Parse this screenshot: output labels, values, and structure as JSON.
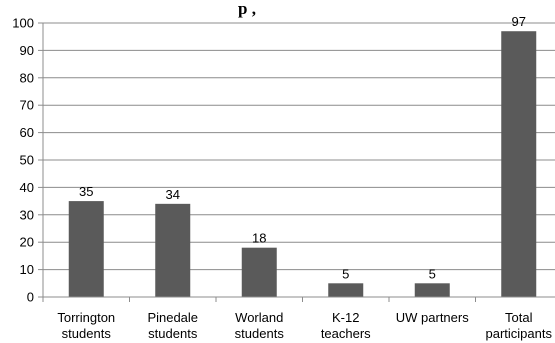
{
  "chart_data": {
    "type": "bar",
    "title_fragment": "p   ,",
    "categories": [
      [
        "Torrington",
        "students"
      ],
      [
        "Pinedale",
        "students"
      ],
      [
        "Worland",
        "students"
      ],
      [
        "K-12",
        "teachers"
      ],
      [
        "UW partners"
      ],
      [
        "Total",
        "participants"
      ]
    ],
    "values": [
      35,
      34,
      18,
      5,
      5,
      97
    ],
    "ylim": [
      0,
      100
    ],
    "yticks": [
      0,
      10,
      20,
      30,
      40,
      50,
      60,
      70,
      80,
      90,
      100
    ],
    "grid": true,
    "legend": "none",
    "colors": {
      "bar": "#5a5a5a",
      "grid": "#8c8c8c",
      "axis": "#8c8c8c"
    }
  }
}
